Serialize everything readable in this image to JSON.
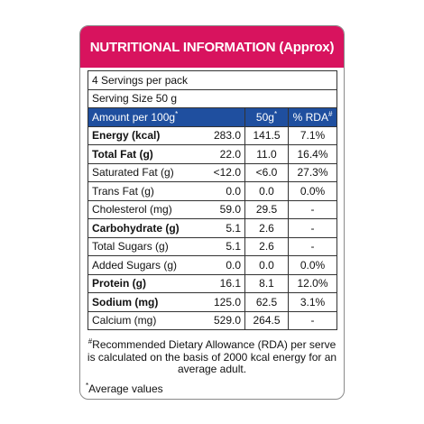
{
  "header": {
    "title": "NUTRITIONAL INFORMATION (Approx)"
  },
  "servings": [
    "4 Servings per pack",
    "Serving Size 50 g"
  ],
  "table": {
    "columns": [
      {
        "text": "Amount per 100g",
        "sup": "*"
      },
      {
        "text": "50g",
        "sup": "*"
      },
      {
        "text": "% RDA",
        "sup": "#"
      }
    ],
    "rows": [
      {
        "label": "Energy (kcal)",
        "per_100g": "283.0",
        "per_50g": "141.5",
        "rda": "7.1%",
        "bold": true
      },
      {
        "label": "Total Fat (g)",
        "per_100g": "22.0",
        "per_50g": "11.0",
        "rda": "16.4%",
        "bold": true
      },
      {
        "label": "Saturated Fat (g)",
        "per_100g": "<12.0",
        "per_50g": "<6.0",
        "rda": "27.3%",
        "bold": false
      },
      {
        "label": "Trans Fat (g)",
        "per_100g": "0.0",
        "per_50g": "0.0",
        "rda": "0.0%",
        "bold": false
      },
      {
        "label": "Cholesterol (mg)",
        "per_100g": "59.0",
        "per_50g": "29.5",
        "rda": "-",
        "bold": false
      },
      {
        "label": "Carbohydrate (g)",
        "per_100g": "5.1",
        "per_50g": "2.6",
        "rda": "-",
        "bold": true
      },
      {
        "label": "Total Sugars (g)",
        "per_100g": "5.1",
        "per_50g": "2.6",
        "rda": "-",
        "bold": false
      },
      {
        "label": "Added Sugars (g)",
        "per_100g": "0.0",
        "per_50g": "0.0",
        "rda": "0.0%",
        "bold": false
      },
      {
        "label": "Protein (g)",
        "per_100g": "16.1",
        "per_50g": "8.1",
        "rda": "12.0%",
        "bold": true
      },
      {
        "label": "Sodium (mg)",
        "per_100g": "125.0",
        "per_50g": "62.5",
        "rda": "3.1%",
        "bold": true
      },
      {
        "label": "Calcium (mg)",
        "per_100g": "529.0",
        "per_50g": "264.5",
        "rda": "-",
        "bold": false
      }
    ]
  },
  "footnotes": [
    {
      "sup": "#",
      "text": "Recommended Dietary Allowance (RDA) per serve is calculated on the basis of 2000 kcal energy for an average adult."
    },
    {
      "sup": "*",
      "text": "Average values"
    }
  ]
}
